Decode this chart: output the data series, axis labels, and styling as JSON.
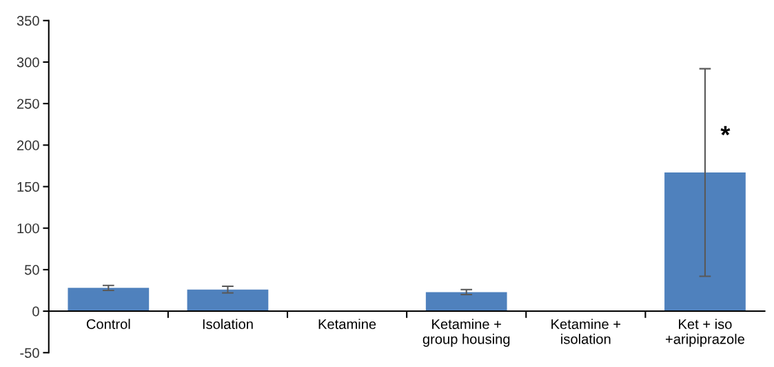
{
  "chart_data": {
    "type": "bar",
    "categories": [
      "Control",
      "Isolation",
      "Ketamine",
      "Ketamine +\ngroup housing",
      "Ketamine +\nisolation",
      "Ket + iso\n+aripiprazole"
    ],
    "values": [
      28,
      26,
      null,
      23,
      null,
      167
    ],
    "errors": [
      3,
      4,
      null,
      3,
      null,
      125
    ],
    "color": "#4f81bd",
    "ylim": [
      -50,
      350
    ],
    "yticks": [
      -50,
      0,
      50,
      100,
      150,
      200,
      250,
      300,
      350
    ],
    "grid": false,
    "legend": false,
    "annotations": [
      {
        "text": "*",
        "x": "Ket + iso\n+aripiprazole",
        "y": 210
      }
    ]
  }
}
